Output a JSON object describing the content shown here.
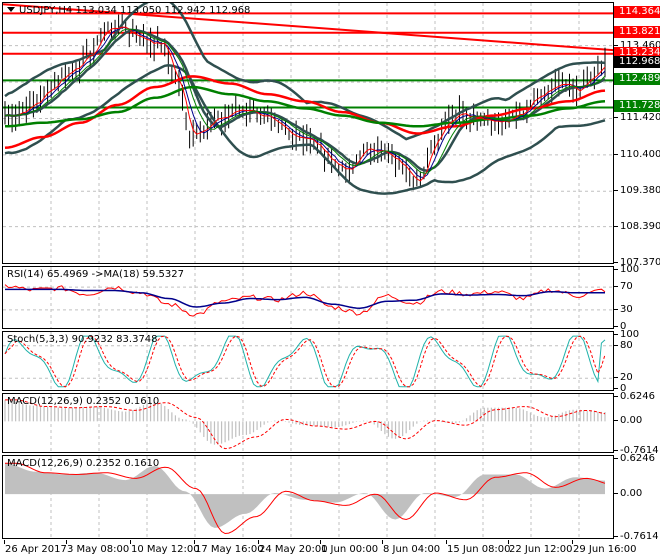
{
  "header": {
    "symbol": "USDJPY,H4",
    "ohlc": "113.034 113.050 112.942 112.968",
    "title": "USDJPY,H4  113.034 113.050 112.942 112.968"
  },
  "colors": {
    "resistance": "#ff0000",
    "support": "#008000",
    "bollinger": "#2f4f4f",
    "ma_fast_red": "#ff0000",
    "ma_blue": "#00008b",
    "ma_green": "#008000",
    "rsi": "#ff0000",
    "rsi_ma": "#00008b",
    "stoch_main": "#20b2aa",
    "stoch_signal": "#ff0000",
    "macd_hist": "#c0c0c0",
    "macd_signal": "#ff0000",
    "current_price_bg": "#000000",
    "grid": "#c0c0c0"
  },
  "price_axis": {
    "ticks": [
      "113.460",
      "111.420",
      "110.400",
      "109.380",
      "108.390",
      "107.370"
    ],
    "badges": [
      {
        "label": "114.364",
        "type": "resistance"
      },
      {
        "label": "113.821",
        "type": "resistance"
      },
      {
        "label": "113.234",
        "type": "resistance"
      },
      {
        "label": "112.968",
        "type": "current"
      },
      {
        "label": "112.489",
        "type": "support"
      },
      {
        "label": "111.728",
        "type": "support"
      }
    ]
  },
  "rsi_panel": {
    "label": "RSI(14) 65.4969  ->MA(18) 59.5327",
    "ticks": [
      "100",
      "70",
      "30",
      "0"
    ]
  },
  "stoch_panel": {
    "label": "Stoch(5,3,3) 90.9232 83.3748",
    "ticks": [
      "100",
      "80",
      "20",
      "0"
    ]
  },
  "macd_hist_panel": {
    "label": "MACD(12,26,9) 0.2352 0.1610",
    "ticks": [
      "0.6246",
      "0.00",
      "-0.7614"
    ]
  },
  "macd_area_panel": {
    "label": "MACD(12,26,9) 0.2352 0.1610",
    "ticks": [
      "0.6246",
      "0.00",
      "-0.7614"
    ]
  },
  "time_axis": {
    "labels": [
      "26 Apr 2017",
      "3 May 08:00",
      "10 May 12:00",
      "17 May 16:00",
      "24 May 20:00",
      "1 Jun 00:00",
      "8 Jun 04:00",
      "15 Jun 08:00",
      "22 Jun 12:00",
      "29 Jun 16:00"
    ]
  },
  "chart_data": [
    {
      "type": "candlestick",
      "title": "USDJPY,H4",
      "ohlc_last": {
        "open": 113.034,
        "high": 113.05,
        "low": 112.942,
        "close": 112.968
      },
      "ylim": [
        107.37,
        114.6
      ],
      "y_ticks": [
        113.46,
        111.42,
        110.4,
        109.38,
        108.39,
        107.37
      ],
      "x_labels": [
        "26 Apr 2017",
        "3 May 08:00",
        "10 May 12:00",
        "17 May 16:00",
        "24 May 20:00",
        "1 Jun 00:00",
        "8 Jun 04:00",
        "15 Jun 08:00",
        "22 Jun 12:00",
        "29 Jun 16:00"
      ],
      "horizontal_levels": [
        {
          "value": 114.364,
          "color": "red",
          "role": "resistance"
        },
        {
          "value": 113.821,
          "color": "red",
          "role": "resistance"
        },
        {
          "value": 113.234,
          "color": "red",
          "role": "resistance"
        },
        {
          "value": 112.489,
          "color": "green",
          "role": "support"
        },
        {
          "value": 111.728,
          "color": "green",
          "role": "support"
        }
      ],
      "trendline": {
        "color": "red",
        "from": 114.6,
        "to": 113.3,
        "direction": "descending"
      },
      "approx_close_path": [
        {
          "x": "26 Apr 2017",
          "y": 111.6
        },
        {
          "x": "3 May 08:00",
          "y": 112.6
        },
        {
          "x": "10 May 12:00",
          "y": 114.1
        },
        {
          "x": "17 May 16:00",
          "y": 111.1
        },
        {
          "x": "24 May 20:00",
          "y": 111.6
        },
        {
          "x": "1 Jun 00:00",
          "y": 110.8
        },
        {
          "x": "8 Jun 04:00",
          "y": 110.0
        },
        {
          "x": "15 Jun 08:00",
          "y": 111.2
        },
        {
          "x": "22 Jun 12:00",
          "y": 111.9
        },
        {
          "x": "29 Jun 16:00",
          "y": 112.9
        }
      ],
      "overlays": [
        "Bollinger Bands",
        "Moving Average (red, slow)",
        "Moving Average (green, slow)",
        "Moving Average (blue, fast)",
        "Moving Average (red, fast)"
      ]
    },
    {
      "type": "line",
      "title": "RSI(14) 65.4969 ->MA(18) 59.5327",
      "ylim": [
        0,
        100
      ],
      "y_ticks": [
        100,
        70,
        30,
        0
      ],
      "series": [
        {
          "name": "RSI(14)",
          "last": 65.4969,
          "values": [
            72,
            65,
            68,
            58,
            70,
            60,
            40,
            22,
            45,
            52,
            48,
            60,
            35,
            25,
            55,
            42,
            62,
            58,
            62,
            50,
            65,
            55,
            65
          ]
        },
        {
          "name": "MA(18)",
          "last": 59.5327,
          "values": [
            66,
            66,
            66,
            64,
            64,
            60,
            50,
            35,
            42,
            50,
            48,
            52,
            40,
            33,
            45,
            47,
            58,
            56,
            57,
            55,
            62,
            60,
            60
          ]
        }
      ]
    },
    {
      "type": "line",
      "title": "Stoch(5,3,3) 90.9232 83.3748",
      "ylim": [
        0,
        100
      ],
      "y_ticks": [
        100,
        80,
        20,
        0
      ],
      "series": [
        {
          "name": "%K",
          "last": 90.9232
        },
        {
          "name": "%D",
          "last": 83.3748
        }
      ]
    },
    {
      "type": "bar",
      "title": "MACD(12,26,9) 0.2352 0.1610",
      "ylim": [
        -0.7614,
        0.6246
      ],
      "y_ticks": [
        0.6246,
        0.0,
        -0.7614
      ],
      "series": [
        {
          "name": "MACD",
          "last": 0.2352,
          "values": [
            0.55,
            0.4,
            0.35,
            0.38,
            0.25,
            0.5,
            0.05,
            -0.6,
            -0.35,
            0.02,
            -0.1,
            -0.15,
            0.02,
            -0.45,
            0.02,
            -0.05,
            0.35,
            0.35,
            0.1,
            0.3,
            0.24
          ]
        },
        {
          "name": "Signal",
          "last": 0.161,
          "values": [
            0.55,
            0.38,
            0.35,
            0.38,
            0.28,
            0.48,
            0.1,
            -0.7,
            -0.4,
            0.05,
            -0.12,
            -0.2,
            0.0,
            -0.45,
            0.02,
            -0.1,
            0.3,
            0.38,
            0.12,
            0.28,
            0.16
          ]
        }
      ]
    }
  ]
}
